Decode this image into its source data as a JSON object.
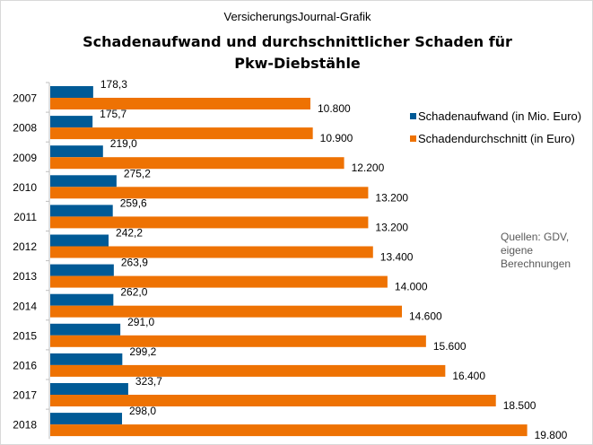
{
  "chart_data": {
    "type": "bar",
    "orientation": "horizontal",
    "supertitle": "VersicherungsJournal-Grafik",
    "title": "Schadenaufwand  und durchschnittlicher Schaden für Pkw-Diebstähle",
    "title_lines": [
      "Schadenaufwand  und durchschnittlicher Schaden für",
      "Pkw-Diebstähle"
    ],
    "categories": [
      "2007",
      "2008",
      "2009",
      "2010",
      "2011",
      "2012",
      "2013",
      "2014",
      "2015",
      "2016",
      "2017",
      "2018"
    ],
    "series": [
      {
        "name": "Schadenaufwand (in Mio. Euro)",
        "color": "#005a96",
        "values": [
          178.3,
          175.7,
          219.0,
          275.2,
          259.6,
          242.2,
          263.9,
          262.0,
          291.0,
          299.2,
          323.7,
          298.0
        ],
        "labels": [
          "178,3",
          "175,7",
          "219,0",
          "275,2",
          "259,6",
          "242,2",
          "263,9",
          "262,0",
          "291,0",
          "299,2",
          "323,7",
          "298,0"
        ]
      },
      {
        "name": "Schadendurchschnitt (in Euro)",
        "color": "#ee7203",
        "values": [
          10800,
          10900,
          12200,
          13200,
          13200,
          13400,
          14000,
          14600,
          15600,
          16400,
          18500,
          19800
        ],
        "labels": [
          "10.800",
          "10.900",
          "12.200",
          "13.200",
          "13.200",
          "13.400",
          "14.000",
          "14.600",
          "15.600",
          "16.400",
          "18.500",
          "19.800"
        ]
      }
    ],
    "legend_position": "right",
    "grid": false,
    "source_lines": [
      "Quellen:  GDV,",
      "eigene",
      "Berechnungen"
    ]
  }
}
